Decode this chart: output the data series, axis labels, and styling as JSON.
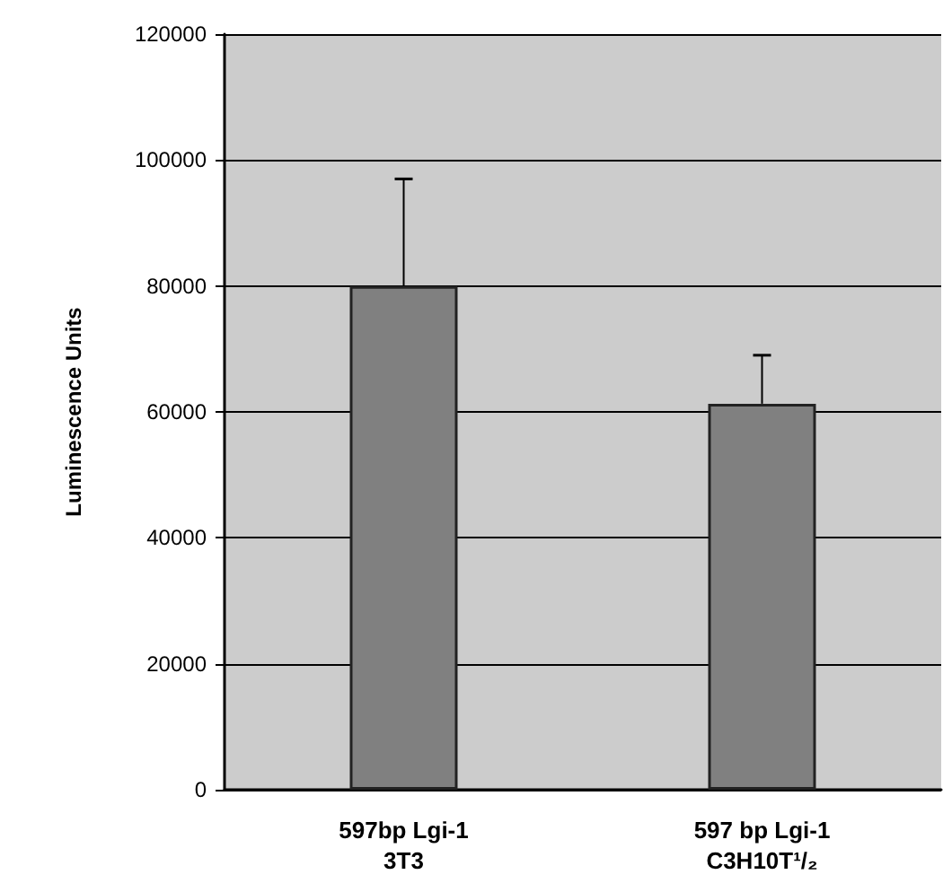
{
  "chart_data": {
    "type": "bar",
    "ylabel": "Luminescence Units",
    "categories": [
      "597bp Lgi-1\n3T3",
      "597 bp Lgi-1\nC3H10T¹/₂"
    ],
    "values": [
      80000,
      61300
    ],
    "errors": [
      [
        80000,
        97000
      ],
      [
        61300,
        69000
      ]
    ],
    "color": "#808080",
    "ylim": [
      0,
      120000
    ],
    "yticks": [
      0,
      20000,
      40000,
      60000,
      80000,
      100000,
      120000
    ],
    "grid": "y"
  }
}
